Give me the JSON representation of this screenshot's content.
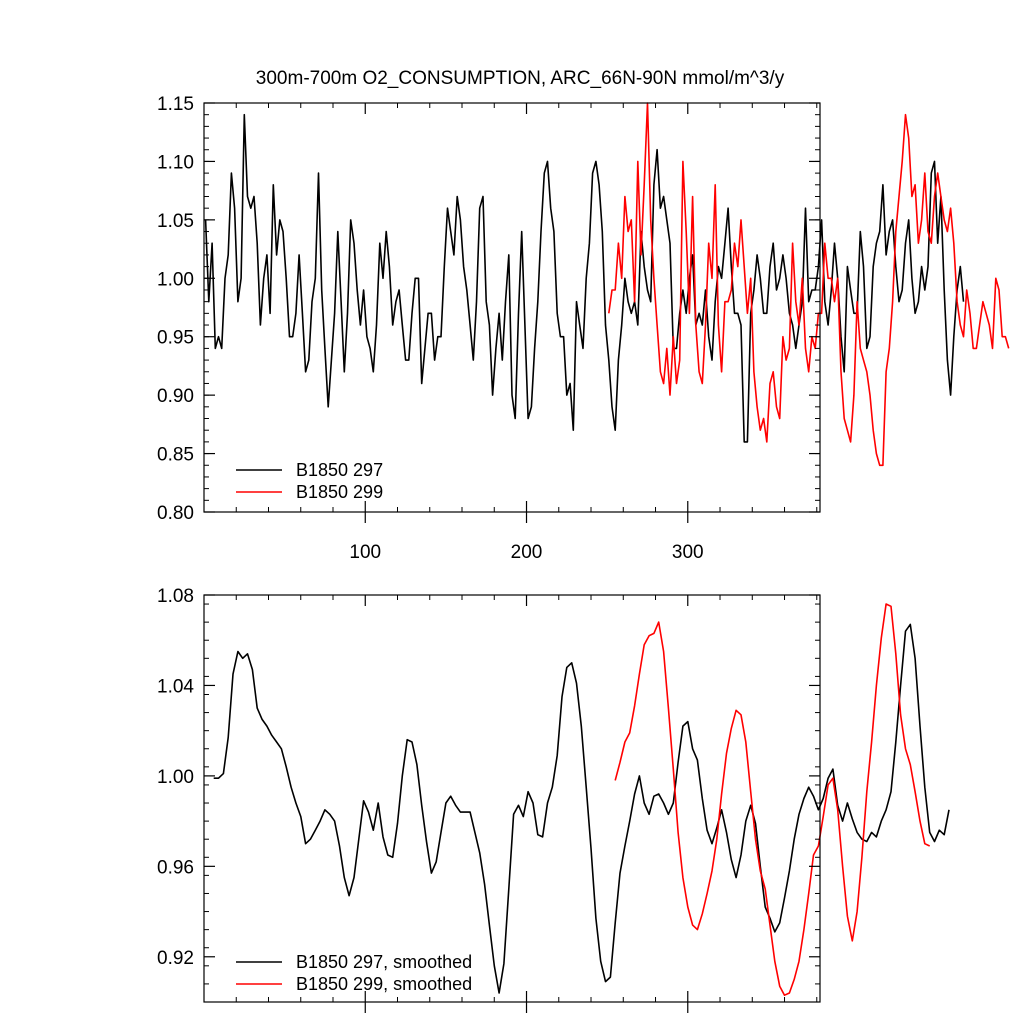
{
  "chart_data": [
    {
      "type": "line",
      "title": "300m-700m O2_CONSUMPTION, ARC_66N-90N  mmol/m^3/y",
      "xlabel": "",
      "ylabel": "",
      "xlim": [
        0,
        382
      ],
      "ylim": [
        0.8,
        1.15
      ],
      "xticks": [
        100,
        200,
        300
      ],
      "yticks": [
        0.8,
        0.85,
        0.9,
        0.95,
        1.0,
        1.05,
        1.1,
        1.15
      ],
      "yticklabels": [
        "0.80",
        "0.85",
        "0.90",
        "0.95",
        "1.00",
        "1.05",
        "1.10",
        "1.15"
      ],
      "grid": false,
      "legend_position": "bottom-left",
      "series": [
        {
          "name": "B1850 297",
          "color": "#000000",
          "x0": 1,
          "dx": 2,
          "values": [
            1.05,
            0.98,
            1.03,
            0.94,
            0.95,
            0.94,
            1.0,
            1.02,
            1.09,
            1.06,
            0.98,
            1.0,
            1.14,
            1.07,
            1.06,
            1.07,
            1.03,
            0.96,
            1.0,
            1.02,
            0.97,
            1.08,
            1.02,
            1.05,
            1.04,
            1.0,
            0.95,
            0.95,
            0.97,
            1.02,
            0.97,
            0.92,
            0.93,
            0.98,
            1.0,
            1.09,
            0.99,
            0.94,
            0.89,
            0.93,
            0.97,
            1.04,
            0.98,
            0.92,
            0.97,
            1.05,
            1.03,
            0.99,
            0.96,
            0.99,
            0.95,
            0.94,
            0.92,
            0.96,
            1.03,
            1.0,
            1.04,
            1.01,
            0.96,
            0.98,
            0.99,
            0.96,
            0.93,
            0.93,
            0.97,
            1.0,
            1.0,
            0.91,
            0.94,
            0.97,
            0.97,
            0.93,
            0.95,
            0.95,
            1.01,
            1.06,
            1.04,
            1.02,
            1.07,
            1.05,
            1.01,
            0.99,
            0.96,
            0.93,
            0.98,
            1.06,
            1.07,
            0.98,
            0.96,
            0.9,
            0.94,
            0.97,
            0.93,
            0.98,
            1.02,
            0.9,
            0.88,
            0.97,
            1.04,
            0.96,
            0.88,
            0.89,
            0.94,
            0.98,
            1.04,
            1.09,
            1.1,
            1.06,
            1.04,
            0.97,
            0.95,
            0.95,
            0.9,
            0.91,
            0.87,
            0.98,
            0.96,
            0.94,
            1.0,
            1.03,
            1.09,
            1.1,
            1.08,
            1.04,
            0.96,
            0.93,
            0.89,
            0.87,
            0.93,
            0.96,
            1.0,
            0.98,
            0.97,
            0.98,
            0.96,
            1.04,
            1.01,
            0.99,
            0.98,
            1.08,
            1.11,
            1.06,
            1.07,
            1.05,
            1.03,
            0.94,
            0.94,
            0.97,
            0.99,
            0.97,
            1.0,
            1.02,
            0.96,
            0.97,
            0.96,
            0.99,
            0.95,
            0.93,
            0.98,
            1.01,
            1.0,
            1.03,
            1.06,
            1.01,
            0.97,
            0.97,
            0.96,
            0.86,
            0.86,
            0.97,
            0.99,
            1.02,
            1.0,
            0.97,
            0.97,
            1.01,
            1.03,
            0.99,
            1.0,
            1.02,
            1.0,
            0.97,
            0.96,
            0.94,
            0.96,
            0.98,
            1.06,
            0.98,
            0.99,
            0.99,
            1.01,
            1.05,
            0.98,
            0.96,
            0.99,
            1.03,
            1.0,
            0.95,
            0.92,
            1.01,
            0.99,
            0.97,
            0.97,
            1.04,
            1.01,
            0.94,
            0.95,
            1.01,
            1.03,
            1.04,
            1.08,
            1.02,
            1.04,
            1.05,
            1.01,
            0.98,
            0.99,
            1.03,
            1.05,
            1.0,
            0.97,
            0.98,
            1.01,
            0.99,
            1.01,
            1.09,
            1.1,
            1.03,
            1.07,
            0.99,
            0.93,
            0.9,
            0.95,
            0.99,
            1.01,
            0.98
          ]
        },
        {
          "name": "B1850 299",
          "color": "#ff0000",
          "x0": 251,
          "dx": 2,
          "values": [
            0.97,
            0.99,
            0.99,
            1.03,
            1.0,
            1.07,
            1.04,
            1.05,
            0.98,
            1.1,
            1.02,
            1.08,
            1.15,
            1.05,
            1.0,
            0.96,
            0.92,
            0.91,
            0.94,
            0.9,
            0.95,
            0.91,
            0.93,
            1.1,
            1.04,
            0.97,
            1.07,
            0.96,
            0.92,
            0.91,
            0.96,
            1.03,
            1.0,
            1.08,
            0.96,
            0.92,
            0.98,
            0.98,
            0.99,
            1.03,
            1.01,
            1.05,
            1.01,
            0.97,
            1.0,
            0.92,
            0.89,
            0.87,
            0.88,
            0.86,
            0.91,
            0.92,
            0.89,
            0.88,
            0.95,
            0.93,
            0.94,
            1.03,
            0.98,
            0.96,
            1.0,
            0.94,
            0.92,
            0.95,
            0.94,
            0.97,
            0.97,
            1.03,
            1.0,
            1.0,
            0.98,
            1.0,
            0.92,
            0.88,
            0.87,
            0.86,
            0.9,
            0.98,
            0.94,
            0.93,
            0.92,
            0.9,
            0.87,
            0.85,
            0.84,
            0.84,
            0.92,
            0.94,
            0.98,
            1.04,
            1.07,
            1.1,
            1.14,
            1.12,
            1.07,
            1.08,
            1.03,
            1.05,
            1.09,
            1.04,
            1.03,
            1.07,
            1.09,
            1.07,
            1.05,
            1.04,
            1.06,
            1.03,
            0.98,
            0.96,
            0.95,
            0.99,
            0.97,
            0.94,
            0.94,
            0.96,
            0.98,
            0.97,
            0.96,
            0.94,
            1.0,
            0.99,
            0.95,
            0.95,
            0.94
          ]
        }
      ]
    },
    {
      "type": "line",
      "title": "",
      "xlabel": "",
      "ylabel": "",
      "xlim": [
        0,
        382
      ],
      "ylim": [
        0.9,
        1.08
      ],
      "xticks": [
        100,
        200,
        300
      ],
      "yticks": [
        0.92,
        0.96,
        1.0,
        1.04,
        1.08
      ],
      "yticklabels": [
        "0.92",
        "0.96",
        "1.00",
        "1.04",
        "1.08"
      ],
      "grid": false,
      "legend_position": "bottom-left",
      "series": [
        {
          "name": "B1850 297, smoothed",
          "color": "#000000",
          "x0": 6,
          "dx": 3,
          "values": [
            0.999,
            0.999,
            1.001,
            1.017,
            1.045,
            1.055,
            1.052,
            1.054,
            1.047,
            1.03,
            1.025,
            1.022,
            1.018,
            1.015,
            1.012,
            1.004,
            0.995,
            0.988,
            0.982,
            0.97,
            0.972,
            0.976,
            0.98,
            0.985,
            0.983,
            0.98,
            0.969,
            0.955,
            0.947,
            0.955,
            0.972,
            0.989,
            0.984,
            0.976,
            0.988,
            0.973,
            0.965,
            0.964,
            0.979,
            1.0,
            1.016,
            1.015,
            1.005,
            0.987,
            0.971,
            0.957,
            0.962,
            0.975,
            0.988,
            0.991,
            0.987,
            0.984,
            0.984,
            0.984,
            0.975,
            0.966,
            0.952,
            0.934,
            0.916,
            0.904,
            0.917,
            0.95,
            0.983,
            0.987,
            0.982,
            0.993,
            0.988,
            0.974,
            0.973,
            0.988,
            0.995,
            1.009,
            1.035,
            1.048,
            1.05,
            1.041,
            1.022,
            0.995,
            0.968,
            0.937,
            0.918,
            0.909,
            0.911,
            0.935,
            0.957,
            0.969,
            0.98,
            0.992,
            1.0,
            0.988,
            0.983,
            0.991,
            0.992,
            0.988,
            0.983,
            0.988,
            1.006,
            1.022,
            1.024,
            1.012,
            1.007,
            0.99,
            0.976,
            0.97,
            0.977,
            0.985,
            0.975,
            0.963,
            0.955,
            0.965,
            0.98,
            0.987,
            0.979,
            0.96,
            0.942,
            0.937,
            0.931,
            0.935,
            0.946,
            0.958,
            0.972,
            0.983,
            0.99,
            0.995,
            0.991,
            0.985,
            0.99,
            0.999,
            1.003,
            0.987,
            0.98,
            0.988,
            0.981,
            0.975,
            0.972,
            0.971,
            0.975,
            0.973,
            0.98,
            0.985,
            0.993,
            1.015,
            1.04,
            1.064,
            1.067,
            1.052,
            1.022,
            0.995,
            0.975,
            0.971,
            0.976,
            0.974,
            0.985
          ]
        },
        {
          "name": "B1850 299, smoothed",
          "color": "#ff0000",
          "x0": 255,
          "dx": 3,
          "values": [
            0.998,
            1.006,
            1.015,
            1.019,
            1.031,
            1.045,
            1.058,
            1.062,
            1.063,
            1.068,
            1.055,
            1.03,
            1.003,
            0.975,
            0.955,
            0.942,
            0.934,
            0.932,
            0.939,
            0.948,
            0.958,
            0.972,
            0.992,
            1.01,
            1.021,
            1.029,
            1.027,
            1.015,
            0.993,
            0.972,
            0.958,
            0.95,
            0.934,
            0.918,
            0.907,
            0.903,
            0.904,
            0.91,
            0.918,
            0.932,
            0.948,
            0.965,
            0.969,
            0.982,
            0.996,
            0.999,
            0.985,
            0.96,
            0.938,
            0.927,
            0.94,
            0.964,
            0.993,
            1.015,
            1.04,
            1.061,
            1.076,
            1.075,
            1.054,
            1.027,
            1.012,
            1.005,
            0.993,
            0.98,
            0.97,
            0.969
          ]
        }
      ]
    }
  ]
}
